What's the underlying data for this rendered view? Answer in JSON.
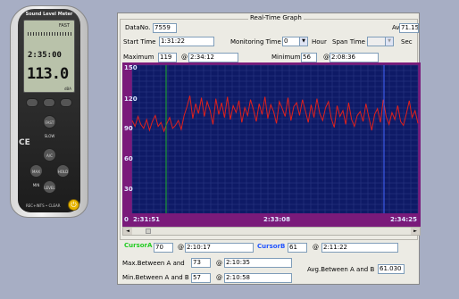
{
  "meter": {
    "name": "Sound Level Meter",
    "mode": "FAST",
    "time": "2:35:00",
    "value": "113.0",
    "unit": "dBA",
    "btn_fast_slow": "FAST SLOW",
    "btn_ac": "A/C",
    "btn_max_min": "MAX MIN",
    "btn_hold": "HOLD",
    "btn_level": "LEVEL",
    "model": "REC+INTS • CLEAR",
    "logo": "CE"
  },
  "app": {
    "title": "Real-Time Graph",
    "datano_label": "DataNo.",
    "datano_value": "7559",
    "avg_label": "Avg",
    "avg_value": "71.15",
    "start_time_label": "Start Time",
    "start_time_value": "1:31:22",
    "monitoring_time_label": "Monitoring Time",
    "monitoring_time_value": "0",
    "hour_label": "Hour",
    "span_time_label": "Span Time",
    "span_time_value": "",
    "sec_label": "Sec",
    "maximum_label": "Maximum",
    "maximum_value": "119",
    "maximum_at": "@",
    "maximum_time": "2:34:12",
    "minimum_label": "Minimum",
    "minimum_value": "56",
    "minimum_at": "@",
    "minimum_time": "2:08:36"
  },
  "chart_data": {
    "type": "line",
    "x_tick_labels": [
      "2:31:51",
      "2:33:08",
      "2:34:25"
    ],
    "y_tick_labels": [
      "150",
      "120",
      "90",
      "60",
      "30",
      "0"
    ],
    "ylim": [
      0,
      150
    ],
    "grid": true,
    "series": [
      {
        "color": "#e0201c",
        "values": [
          94,
          88,
          98,
          90,
          86,
          95,
          84,
          93,
          99,
          88,
          92,
          83,
          91,
          97,
          86,
          89,
          94,
          85,
          99,
          108,
          119,
          96,
          111,
          101,
          117,
          98,
          113,
          104,
          90,
          116,
          100,
          112,
          97,
          118,
          95,
          109,
          102,
          114,
          92,
          107,
          99,
          115,
          105,
          93,
          111,
          100,
          118,
          96,
          110,
          103,
          91,
          113,
          106,
          98,
          117,
          94,
          108,
          112,
          99,
          115,
          104,
          92,
          110,
          97,
          116,
          101,
          94,
          107,
          113,
          96,
          87,
          109,
          98,
          104,
          90,
          112,
          95,
          88,
          99,
          103,
          93,
          111,
          97,
          84,
          100,
          106,
          92,
          115,
          98,
          90,
          102,
          95,
          109,
          93,
          89,
          101,
          114,
          97,
          104,
          91
        ]
      }
    ],
    "cursor_a_color": "#1db02a",
    "cursor_b_color": "#4466ff"
  },
  "cursors": {
    "a_label": "CursorA",
    "a_value": "70",
    "a_at": "@",
    "a_time": "2:10:17",
    "b_label": "CursorB",
    "b_value": "61",
    "b_at": "@",
    "b_time": "2:11:22",
    "max_ab_label": "Max.Between A and",
    "max_ab_value": "73",
    "max_ab_at": "@",
    "max_ab_time": "2:10:35",
    "min_ab_label": "Min.Between A and B",
    "min_ab_value": "57",
    "min_ab_at": "@",
    "min_ab_time": "2:10:58",
    "avg_ab_label": "Avg.Between A and B",
    "avg_ab_value": "61.030"
  },
  "scrollbar": {
    "left_arrow": "◄",
    "right_arrow": "►",
    "position": 0.05
  }
}
